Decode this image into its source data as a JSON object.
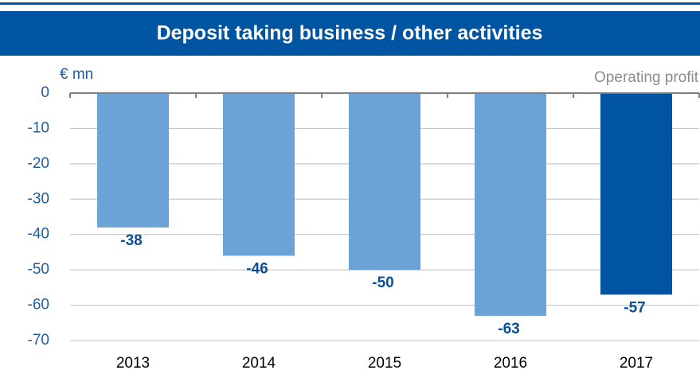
{
  "chart_data": {
    "type": "bar",
    "title": "Deposit taking business / other activities",
    "unit_label": "€ mn",
    "series_label": "Operating profit",
    "categories": [
      "2013",
      "2014",
      "2015",
      "2016",
      "2017"
    ],
    "values": [
      -38,
      -46,
      -50,
      -63,
      -57
    ],
    "colors": [
      "#6ba3d6",
      "#6ba3d6",
      "#6ba3d6",
      "#6ba3d6",
      "#0055a2"
    ],
    "ylim": [
      -70,
      0
    ],
    "yticks": [
      0,
      -10,
      -20,
      -30,
      -40,
      -50,
      -60,
      -70
    ],
    "grid": true
  }
}
